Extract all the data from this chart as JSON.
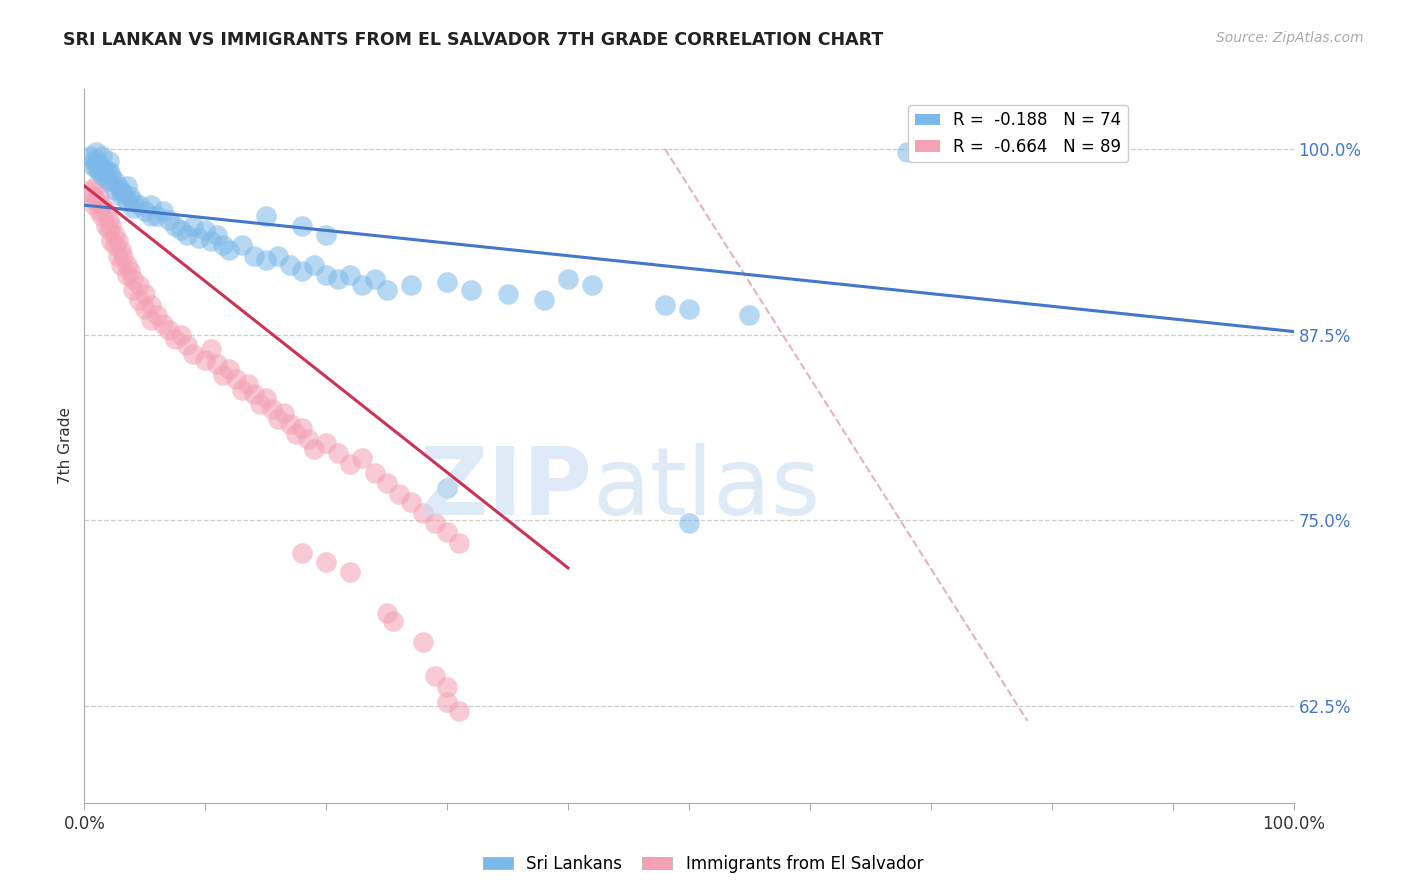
{
  "title": "SRI LANKAN VS IMMIGRANTS FROM EL SALVADOR 7TH GRADE CORRELATION CHART",
  "source": "Source: ZipAtlas.com",
  "ylabel": "7th Grade",
  "ytick_labels": [
    "100.0%",
    "87.5%",
    "75.0%",
    "62.5%"
  ],
  "ytick_values": [
    1.0,
    0.875,
    0.75,
    0.625
  ],
  "xlim": [
    0.0,
    1.0
  ],
  "ylim": [
    0.56,
    1.04
  ],
  "legend_blue_r": "-0.188",
  "legend_blue_n": "74",
  "legend_pink_r": "-0.664",
  "legend_pink_n": "89",
  "blue_color": "#7CB8E8",
  "pink_color": "#F4A0B5",
  "blue_line_color": "#4477CC",
  "pink_line_color": "#CC3355",
  "diag_line_color": "#E8B0C0",
  "legend_label_blue": "Sri Lankans",
  "legend_label_pink": "Immigrants from El Salvador",
  "blue_scatter": [
    [
      0.005,
      0.995
    ],
    [
      0.008,
      0.992
    ],
    [
      0.008,
      0.988
    ],
    [
      0.01,
      0.998
    ],
    [
      0.01,
      0.993
    ],
    [
      0.01,
      0.988
    ],
    [
      0.012,
      0.99
    ],
    [
      0.012,
      0.985
    ],
    [
      0.015,
      0.995
    ],
    [
      0.015,
      0.988
    ],
    [
      0.015,
      0.982
    ],
    [
      0.018,
      0.985
    ],
    [
      0.018,
      0.98
    ],
    [
      0.02,
      0.992
    ],
    [
      0.02,
      0.985
    ],
    [
      0.02,
      0.978
    ],
    [
      0.022,
      0.982
    ],
    [
      0.025,
      0.978
    ],
    [
      0.025,
      0.972
    ],
    [
      0.028,
      0.975
    ],
    [
      0.03,
      0.972
    ],
    [
      0.03,
      0.968
    ],
    [
      0.032,
      0.97
    ],
    [
      0.035,
      0.975
    ],
    [
      0.035,
      0.965
    ],
    [
      0.038,
      0.968
    ],
    [
      0.04,
      0.965
    ],
    [
      0.04,
      0.96
    ],
    [
      0.045,
      0.962
    ],
    [
      0.05,
      0.958
    ],
    [
      0.055,
      0.962
    ],
    [
      0.055,
      0.955
    ],
    [
      0.06,
      0.955
    ],
    [
      0.065,
      0.958
    ],
    [
      0.07,
      0.952
    ],
    [
      0.075,
      0.948
    ],
    [
      0.08,
      0.945
    ],
    [
      0.085,
      0.942
    ],
    [
      0.09,
      0.948
    ],
    [
      0.095,
      0.94
    ],
    [
      0.1,
      0.945
    ],
    [
      0.105,
      0.938
    ],
    [
      0.11,
      0.942
    ],
    [
      0.115,
      0.935
    ],
    [
      0.12,
      0.932
    ],
    [
      0.13,
      0.935
    ],
    [
      0.14,
      0.928
    ],
    [
      0.15,
      0.925
    ],
    [
      0.16,
      0.928
    ],
    [
      0.17,
      0.922
    ],
    [
      0.18,
      0.918
    ],
    [
      0.19,
      0.922
    ],
    [
      0.2,
      0.915
    ],
    [
      0.21,
      0.912
    ],
    [
      0.22,
      0.915
    ],
    [
      0.23,
      0.908
    ],
    [
      0.24,
      0.912
    ],
    [
      0.15,
      0.955
    ],
    [
      0.18,
      0.948
    ],
    [
      0.2,
      0.942
    ],
    [
      0.25,
      0.905
    ],
    [
      0.27,
      0.908
    ],
    [
      0.3,
      0.91
    ],
    [
      0.32,
      0.905
    ],
    [
      0.35,
      0.902
    ],
    [
      0.38,
      0.898
    ],
    [
      0.4,
      0.912
    ],
    [
      0.42,
      0.908
    ],
    [
      0.48,
      0.895
    ],
    [
      0.5,
      0.892
    ],
    [
      0.55,
      0.888
    ],
    [
      0.3,
      0.772
    ],
    [
      0.5,
      0.748
    ],
    [
      0.68,
      0.998
    ],
    [
      0.85,
      0.998
    ]
  ],
  "pink_scatter": [
    [
      0.005,
      0.972
    ],
    [
      0.007,
      0.968
    ],
    [
      0.008,
      0.962
    ],
    [
      0.01,
      0.975
    ],
    [
      0.01,
      0.965
    ],
    [
      0.012,
      0.968
    ],
    [
      0.012,
      0.958
    ],
    [
      0.015,
      0.962
    ],
    [
      0.015,
      0.955
    ],
    [
      0.018,
      0.958
    ],
    [
      0.018,
      0.948
    ],
    [
      0.02,
      0.952
    ],
    [
      0.02,
      0.945
    ],
    [
      0.022,
      0.948
    ],
    [
      0.022,
      0.938
    ],
    [
      0.025,
      0.942
    ],
    [
      0.025,
      0.935
    ],
    [
      0.028,
      0.938
    ],
    [
      0.028,
      0.928
    ],
    [
      0.03,
      0.932
    ],
    [
      0.03,
      0.922
    ],
    [
      0.032,
      0.928
    ],
    [
      0.035,
      0.922
    ],
    [
      0.035,
      0.915
    ],
    [
      0.038,
      0.918
    ],
    [
      0.04,
      0.912
    ],
    [
      0.04,
      0.905
    ],
    [
      0.045,
      0.908
    ],
    [
      0.045,
      0.898
    ],
    [
      0.05,
      0.902
    ],
    [
      0.05,
      0.892
    ],
    [
      0.055,
      0.895
    ],
    [
      0.055,
      0.885
    ],
    [
      0.06,
      0.888
    ],
    [
      0.065,
      0.882
    ],
    [
      0.07,
      0.878
    ],
    [
      0.075,
      0.872
    ],
    [
      0.08,
      0.875
    ],
    [
      0.085,
      0.868
    ],
    [
      0.09,
      0.862
    ],
    [
      0.1,
      0.858
    ],
    [
      0.105,
      0.865
    ],
    [
      0.11,
      0.855
    ],
    [
      0.115,
      0.848
    ],
    [
      0.12,
      0.852
    ],
    [
      0.125,
      0.845
    ],
    [
      0.13,
      0.838
    ],
    [
      0.135,
      0.842
    ],
    [
      0.14,
      0.835
    ],
    [
      0.145,
      0.828
    ],
    [
      0.15,
      0.832
    ],
    [
      0.155,
      0.825
    ],
    [
      0.16,
      0.818
    ],
    [
      0.165,
      0.822
    ],
    [
      0.17,
      0.815
    ],
    [
      0.175,
      0.808
    ],
    [
      0.18,
      0.812
    ],
    [
      0.185,
      0.805
    ],
    [
      0.19,
      0.798
    ],
    [
      0.2,
      0.802
    ],
    [
      0.21,
      0.795
    ],
    [
      0.22,
      0.788
    ],
    [
      0.23,
      0.792
    ],
    [
      0.24,
      0.782
    ],
    [
      0.25,
      0.775
    ],
    [
      0.26,
      0.768
    ],
    [
      0.27,
      0.762
    ],
    [
      0.28,
      0.755
    ],
    [
      0.29,
      0.748
    ],
    [
      0.3,
      0.742
    ],
    [
      0.31,
      0.735
    ],
    [
      0.18,
      0.728
    ],
    [
      0.2,
      0.722
    ],
    [
      0.22,
      0.715
    ],
    [
      0.25,
      0.688
    ],
    [
      0.255,
      0.682
    ],
    [
      0.28,
      0.668
    ],
    [
      0.29,
      0.645
    ],
    [
      0.3,
      0.638
    ],
    [
      0.3,
      0.628
    ],
    [
      0.31,
      0.622
    ]
  ],
  "blue_line_x": [
    0.0,
    1.0
  ],
  "blue_line_y": [
    0.962,
    0.877
  ],
  "pink_line_x": [
    0.0,
    0.4
  ],
  "pink_line_y": [
    0.975,
    0.718
  ],
  "diag_line_x": [
    0.48,
    0.78
  ],
  "diag_line_y": [
    1.0,
    0.615
  ]
}
